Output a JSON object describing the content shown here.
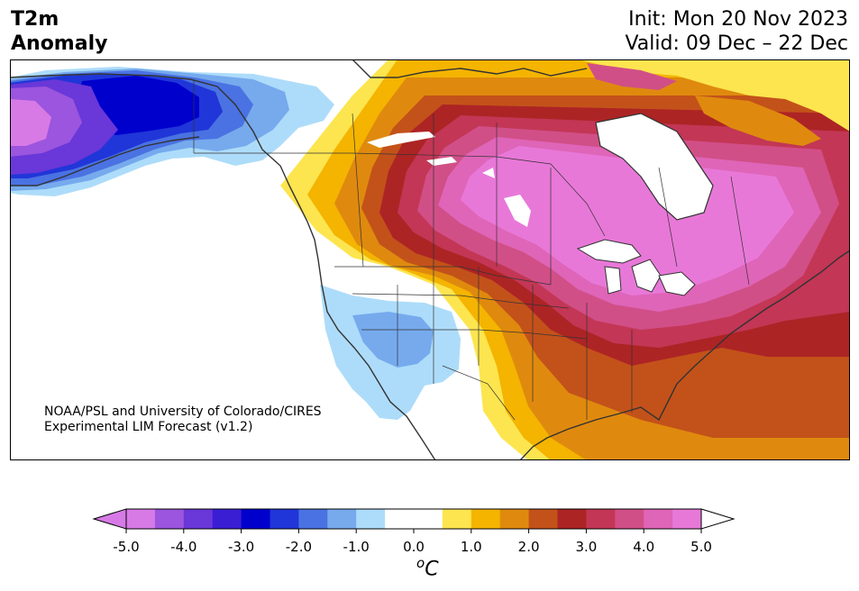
{
  "title": {
    "line1": "T2m",
    "line2": "Anomaly"
  },
  "dates": {
    "init": "Init: Mon 20 Nov 2023",
    "valid": "Valid: 09 Dec – 22 Dec"
  },
  "credit": {
    "line1": "NOAA/PSL and University of Colorado/CIRES",
    "line2": "Experimental LIM Forecast (v1.2)"
  },
  "colorbar": {
    "ticks": [
      "-5.0",
      "-4.0",
      "-3.0",
      "-2.0",
      "-1.0",
      "0.0",
      "1.0",
      "2.0",
      "3.0",
      "4.0",
      "5.0"
    ],
    "unit_prefix": "o",
    "unit": "C",
    "colors": [
      "#d77ae6",
      "#9b55de",
      "#6a37d8",
      "#3a1ed4",
      "#0000cd",
      "#2036d8",
      "#4a72e2",
      "#76aaed",
      "#addcfa",
      "#ffffff",
      "#ffffff",
      "#fde54f",
      "#f4b400",
      "#df8a0e",
      "#c3521a",
      "#ad2425",
      "#c33655",
      "#d14f87",
      "#df65b8",
      "#e878d8"
    ],
    "over_color": "#ffffff",
    "under_color": "#d77ae6"
  },
  "map": {
    "region": "North America",
    "land_color": "#ffffff",
    "coast_color": "#333333"
  }
}
